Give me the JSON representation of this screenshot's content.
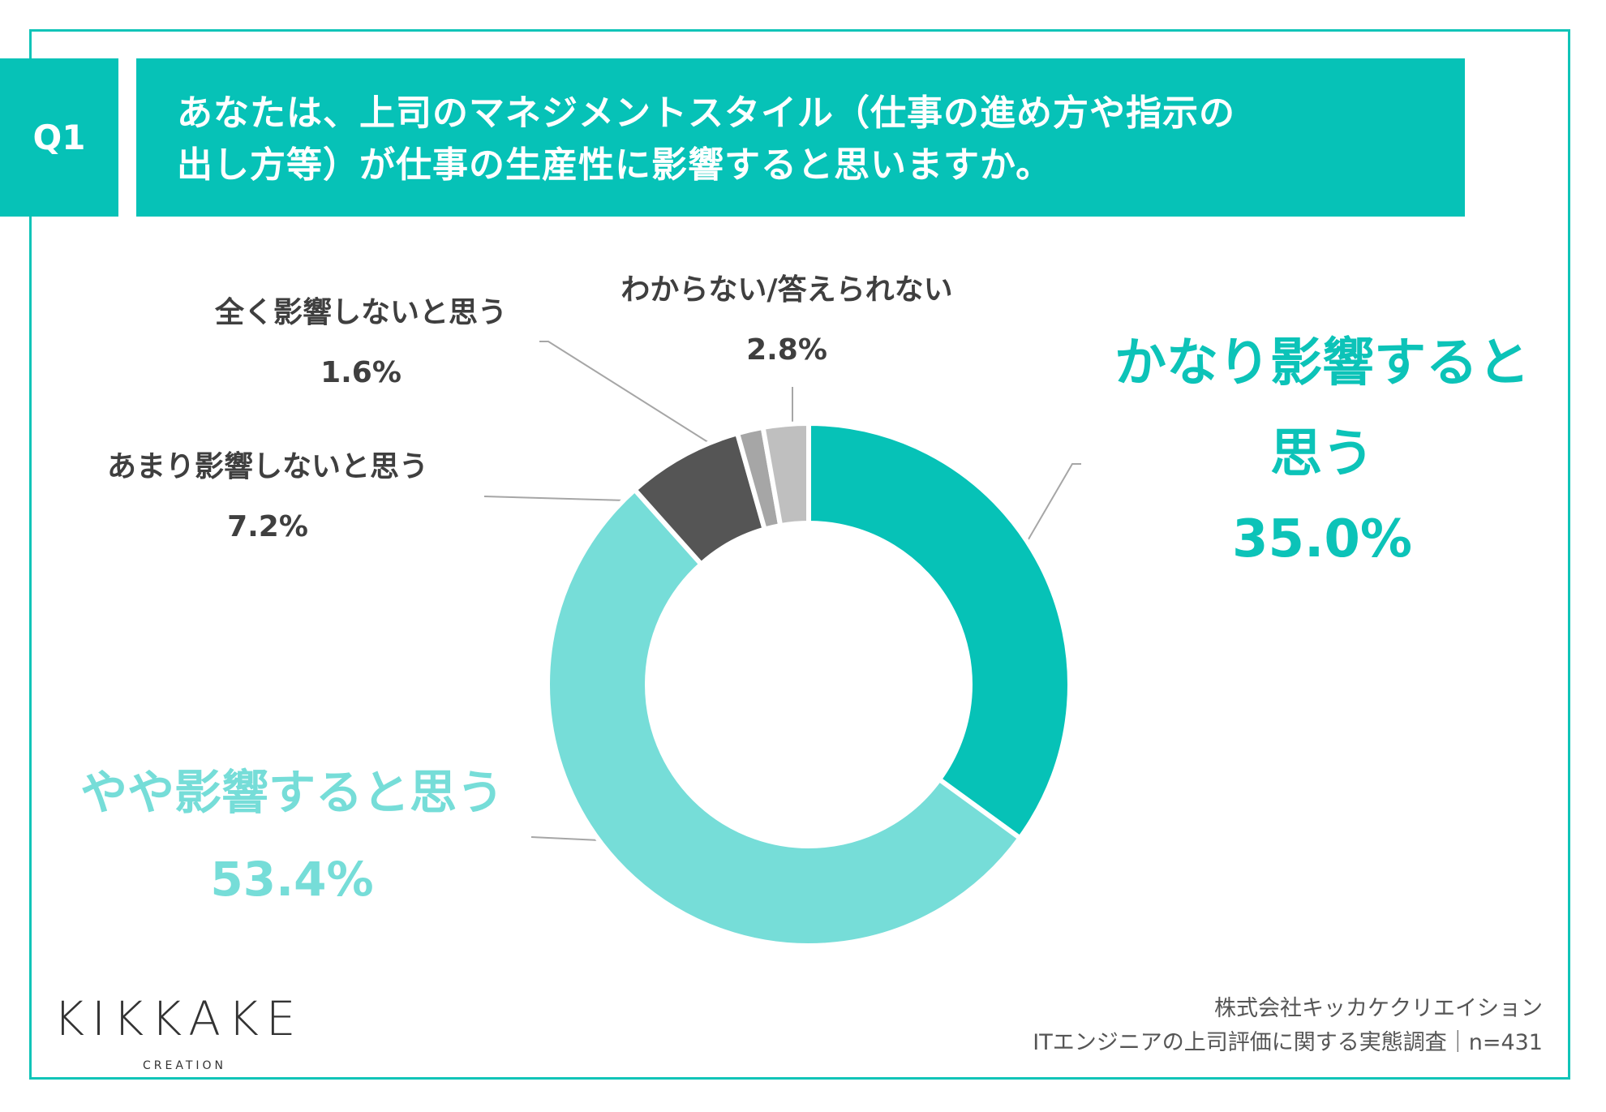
{
  "question": {
    "badge": "Q1",
    "line1": "あなたは、上司のマネジメントスタイル（仕事の進め方や指示の",
    "line2": "出し方等）が仕事の生産性に影響すると思いますか。"
  },
  "chart_data": {
    "type": "pie",
    "donut": true,
    "start": "top",
    "direction": "clockwise",
    "categories": [
      "かなり影響すると思う",
      "やや影響すると思う",
      "あまり影響しないと思う",
      "全く影響しないと思う",
      "わからない/答えられない"
    ],
    "values": [
      35.0,
      53.4,
      7.2,
      1.6,
      2.8
    ],
    "value_labels": [
      "35.0%",
      "53.4%",
      "7.2%",
      "1.6%",
      "2.8%"
    ],
    "colors": [
      "#06c2b7",
      "#76ddd8",
      "#555555",
      "#a6a6a6",
      "#bfbfbf"
    ]
  },
  "labels": {
    "strong": {
      "line1": "かなり影響すると",
      "line2": "思う"
    },
    "slight": "やや影響すると思う",
    "little": "あまり影響しないと思う",
    "none": "全く影響しないと思う",
    "unknown": "わからない/答えられない"
  },
  "logo": {
    "text": "KIKKAKE",
    "sub": "CREATION"
  },
  "credit": {
    "line1": "株式会社キッカケクリエイション",
    "line2": "ITエンジニアの上司評価に関する実態調査｜n=431"
  }
}
